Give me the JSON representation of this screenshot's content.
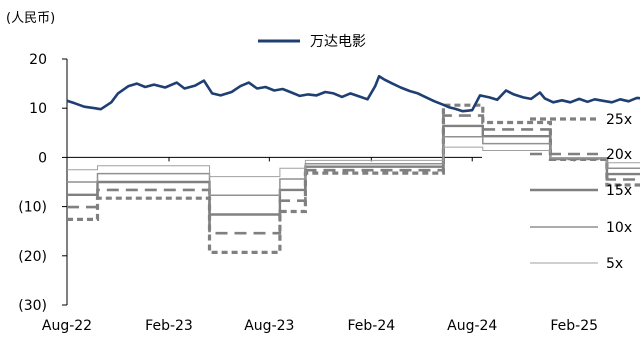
{
  "chart_data": {
    "type": "line",
    "unit_label": "(人民币)",
    "yticks": [
      {
        "value": 20,
        "label": "20"
      },
      {
        "value": 10,
        "label": "10"
      },
      {
        "value": 0,
        "label": "0"
      },
      {
        "value": -10,
        "label": "(10)"
      },
      {
        "value": -20,
        "label": "(20)"
      },
      {
        "value": -30,
        "label": "(30)"
      }
    ],
    "ylim": [
      -30,
      20
    ],
    "xlim": [
      "2022-08-01",
      "2025-06-15"
    ],
    "xticks": [
      {
        "date": "2022-08-01",
        "label": "Aug-22"
      },
      {
        "date": "2023-02-01",
        "label": "Feb-23"
      },
      {
        "date": "2023-08-01",
        "label": "Aug-23"
      },
      {
        "date": "2024-02-01",
        "label": "Feb-24"
      },
      {
        "date": "2024-08-01",
        "label": "Aug-24"
      },
      {
        "date": "2025-02-01",
        "label": "Feb-25"
      }
    ],
    "price_series": {
      "name": "万达电影",
      "color": "#1f3f73",
      "points": [
        [
          "2022-08-01",
          11.5
        ],
        [
          "2022-08-15",
          11.0
        ],
        [
          "2022-09-01",
          10.3
        ],
        [
          "2022-09-20",
          10.0
        ],
        [
          "2022-10-01",
          9.8
        ],
        [
          "2022-10-20",
          11.2
        ],
        [
          "2022-11-01",
          13.0
        ],
        [
          "2022-11-20",
          14.5
        ],
        [
          "2022-12-05",
          15.0
        ],
        [
          "2022-12-20",
          14.3
        ],
        [
          "2023-01-05",
          14.8
        ],
        [
          "2023-01-25",
          14.2
        ],
        [
          "2023-02-15",
          15.2
        ],
        [
          "2023-03-01",
          14.0
        ],
        [
          "2023-03-20",
          14.6
        ],
        [
          "2023-04-05",
          15.6
        ],
        [
          "2023-04-20",
          13.0
        ],
        [
          "2023-05-05",
          12.6
        ],
        [
          "2023-05-25",
          13.3
        ],
        [
          "2023-06-10",
          14.5
        ],
        [
          "2023-06-25",
          15.2
        ],
        [
          "2023-07-10",
          14.0
        ],
        [
          "2023-07-25",
          14.3
        ],
        [
          "2023-08-10",
          13.6
        ],
        [
          "2023-08-25",
          13.9
        ],
        [
          "2023-09-10",
          13.2
        ],
        [
          "2023-09-25",
          12.5
        ],
        [
          "2023-10-10",
          12.8
        ],
        [
          "2023-10-25",
          12.6
        ],
        [
          "2023-11-10",
          13.3
        ],
        [
          "2023-11-25",
          13.0
        ],
        [
          "2023-12-10",
          12.3
        ],
        [
          "2023-12-25",
          13.0
        ],
        [
          "2024-01-10",
          12.4
        ],
        [
          "2024-01-25",
          11.8
        ],
        [
          "2024-02-08",
          14.5
        ],
        [
          "2024-02-15",
          16.5
        ],
        [
          "2024-02-25",
          15.8
        ],
        [
          "2024-03-10",
          15.0
        ],
        [
          "2024-03-25",
          14.2
        ],
        [
          "2024-04-10",
          13.5
        ],
        [
          "2024-04-25",
          13.0
        ],
        [
          "2024-05-10",
          12.2
        ],
        [
          "2024-05-25",
          11.4
        ],
        [
          "2024-06-10",
          10.7
        ],
        [
          "2024-06-20",
          10.2
        ],
        [
          "2024-07-01",
          9.9
        ],
        [
          "2024-07-15",
          9.4
        ],
        [
          "2024-08-01",
          9.6
        ],
        [
          "2024-08-15",
          12.6
        ],
        [
          "2024-09-01",
          12.2
        ],
        [
          "2024-09-15",
          11.7
        ],
        [
          "2024-10-01",
          13.6
        ],
        [
          "2024-10-15",
          12.8
        ],
        [
          "2024-11-01",
          12.2
        ],
        [
          "2024-11-15",
          11.9
        ],
        [
          "2024-12-01",
          13.2
        ],
        [
          "2024-12-10",
          12.0
        ],
        [
          "2024-12-25",
          11.2
        ],
        [
          "2025-01-10",
          11.6
        ],
        [
          "2025-01-25",
          11.2
        ],
        [
          "2025-02-10",
          11.9
        ],
        [
          "2025-02-25",
          11.3
        ],
        [
          "2025-03-10",
          11.8
        ],
        [
          "2025-03-25",
          11.5
        ],
        [
          "2025-04-10",
          11.2
        ],
        [
          "2025-04-25",
          11.8
        ],
        [
          "2025-05-10",
          11.4
        ],
        [
          "2025-05-25",
          12.1
        ],
        [
          "2025-06-15",
          11.9
        ]
      ]
    },
    "band_series": [
      {
        "name": "25x",
        "color": "#808080",
        "values": [
          -12.6,
          -8.3,
          -19.3,
          -11.0,
          -3.2,
          10.6,
          7.1,
          -0.4,
          -5.6
        ]
      },
      {
        "name": "20x",
        "color": "#808080",
        "values": [
          -10.1,
          -6.6,
          -15.4,
          -8.8,
          -2.6,
          8.5,
          5.7,
          -0.3,
          -4.5
        ]
      },
      {
        "name": "15x",
        "color": "#808080",
        "values": [
          -7.6,
          -5.0,
          -11.6,
          -6.6,
          -1.9,
          6.4,
          4.3,
          -0.2,
          -3.4
        ]
      },
      {
        "name": "10x",
        "color": "#909090",
        "values": [
          -5.0,
          -3.3,
          -7.7,
          -4.4,
          -1.3,
          4.2,
          2.8,
          -0.1,
          -2.2
        ]
      },
      {
        "name": "5x",
        "color": "#a0a0a0",
        "values": [
          -2.5,
          -1.7,
          -3.9,
          -2.2,
          -0.6,
          2.1,
          1.4,
          -0.1,
          -1.1
        ]
      }
    ],
    "band_breaks": [
      "2022-08-01",
      "2022-09-25",
      "2023-04-15",
      "2023-08-20",
      "2023-10-05",
      "2024-06-10",
      "2024-08-20",
      "2024-12-20",
      "2025-04-01",
      "2025-06-15"
    ],
    "legend_position": "right",
    "grid": false
  }
}
